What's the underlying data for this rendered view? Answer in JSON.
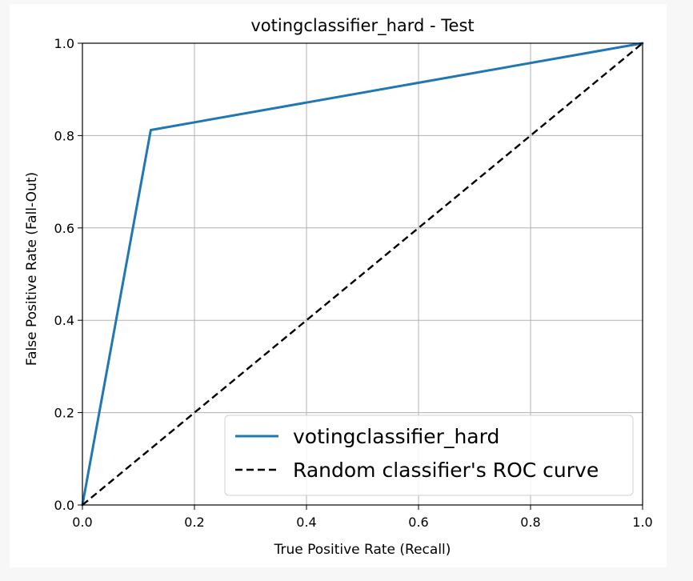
{
  "chart_data": {
    "type": "line",
    "title": "votingclassifier_hard - Test",
    "xlabel": "True Positive Rate (Recall)",
    "ylabel": "False Positive Rate (Fall-Out)",
    "xlim": [
      0.0,
      1.0
    ],
    "ylim": [
      0.0,
      1.0
    ],
    "xticks": [
      "0.0",
      "0.2",
      "0.4",
      "0.6",
      "0.8",
      "1.0"
    ],
    "yticks": [
      "0.0",
      "0.2",
      "0.4",
      "0.6",
      "0.8",
      "1.0"
    ],
    "grid": true,
    "legend_position": "bottom-right",
    "series": [
      {
        "name": "votingclassifier_hard",
        "color": "#1f77b4",
        "style": "solid",
        "x": [
          0.0,
          0.122,
          1.0
        ],
        "y": [
          0.0,
          0.812,
          1.0
        ]
      },
      {
        "name": "Random classifier's ROC curve",
        "color": "#000000",
        "style": "dashed",
        "x": [
          0.0,
          1.0
        ],
        "y": [
          0.0,
          1.0
        ]
      }
    ]
  }
}
